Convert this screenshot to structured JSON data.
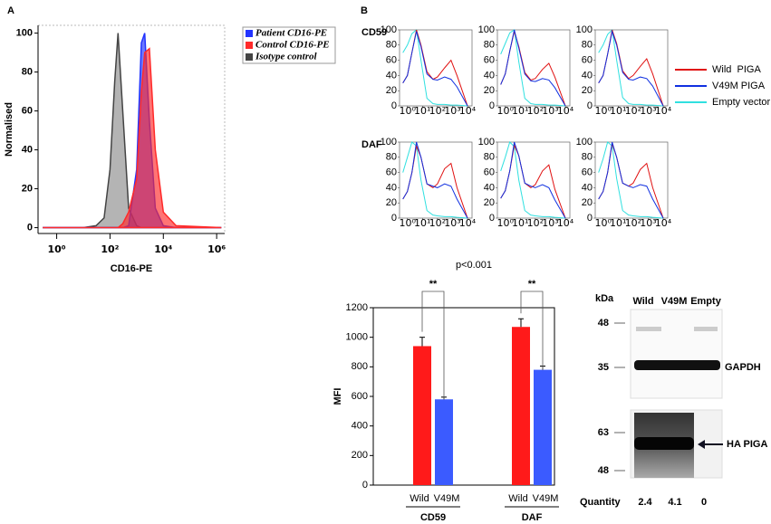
{
  "chart_data": [
    {
      "type": "area",
      "panel": "A",
      "ylabel": "Normalised",
      "xlabel": "CD16-PE",
      "log_x": true,
      "legend": "right",
      "xlim": [
        0.2,
        2000000
      ],
      "xticks": [
        {
          "value": 1,
          "label": "10⁰"
        },
        {
          "value": 100,
          "label": "10²"
        },
        {
          "value": 10000,
          "label": "10⁴"
        },
        {
          "value": 1000000,
          "label": "10⁶"
        }
      ],
      "ylim": [
        -3,
        104
      ],
      "yticks": [
        0,
        20,
        40,
        60,
        80,
        100
      ],
      "x": [
        0.3,
        10,
        30,
        60,
        100,
        150,
        200,
        300,
        500,
        1000,
        1500,
        2000,
        3000,
        5000,
        10000,
        30000,
        1500000
      ],
      "series": [
        {
          "name": "Patient CD16-PE",
          "color": "#2233ff",
          "values": [
            0,
            0,
            0,
            0,
            0,
            0,
            0,
            0,
            1,
            30,
            95,
            100,
            55,
            10,
            1,
            0,
            0
          ]
        },
        {
          "name": "Control CD16-PE",
          "color": "#ff2a2a",
          "values": [
            0,
            0,
            0,
            0,
            0,
            0,
            0,
            2,
            8,
            25,
            70,
            90,
            92,
            40,
            8,
            1,
            0
          ]
        },
        {
          "name": "Isotype control",
          "color": "#444444",
          "values": [
            0,
            0,
            1,
            5,
            30,
            75,
            100,
            60,
            10,
            1,
            0,
            0,
            0,
            0,
            0,
            0,
            0
          ]
        }
      ]
    },
    {
      "type": "line",
      "panel": "B",
      "row_labels": [
        "CD59",
        "DAF"
      ],
      "log_x": true,
      "xlim": [
        0.3,
        20000
      ],
      "xticks": [
        {
          "value": 1,
          "label": "10⁰"
        },
        {
          "value": 10,
          "label": "10¹"
        },
        {
          "value": 100,
          "label": "10²"
        },
        {
          "value": 1000,
          "label": "10³"
        },
        {
          "value": 10000,
          "label": "10⁴"
        }
      ],
      "ylim": [
        0,
        100
      ],
      "yticks": [
        0,
        20,
        40,
        60,
        80,
        100
      ],
      "x": [
        0.5,
        1,
        2,
        4,
        8,
        20,
        50,
        100,
        300,
        800,
        2000,
        10000
      ],
      "series": [
        {
          "name": "Wild  PIGA",
          "color": "#e01010",
          "values": [
            [
              30,
              40,
              70,
              100,
              80,
              45,
              35,
              38,
              50,
              60,
              40,
              0
            ],
            [
              28,
              42,
              72,
              98,
              78,
              44,
              34,
              36,
              48,
              56,
              38,
              0
            ],
            [
              30,
              40,
              68,
              100,
              82,
              46,
              36,
              40,
              52,
              62,
              42,
              0
            ],
            [
              25,
              35,
              60,
              95,
              80,
              45,
              40,
              45,
              65,
              72,
              40,
              0
            ],
            [
              26,
              36,
              62,
              96,
              82,
              46,
              40,
              44,
              62,
              70,
              38,
              0
            ],
            [
              25,
              35,
              60,
              98,
              80,
              46,
              42,
              46,
              64,
              72,
              40,
              0
            ]
          ]
        },
        {
          "name": "V49M PIGA",
          "color": "#1030e0",
          "values": [
            [
              30,
              40,
              70,
              98,
              78,
              42,
              35,
              34,
              38,
              35,
              25,
              0
            ],
            [
              28,
              42,
              72,
              100,
              76,
              42,
              33,
              32,
              36,
              34,
              24,
              0
            ],
            [
              30,
              40,
              68,
              98,
              80,
              44,
              35,
              34,
              38,
              36,
              26,
              0
            ],
            [
              25,
              35,
              60,
              100,
              80,
              45,
              42,
              40,
              45,
              42,
              25,
              0
            ],
            [
              26,
              36,
              62,
              100,
              82,
              46,
              42,
              40,
              44,
              40,
              24,
              0
            ],
            [
              25,
              35,
              60,
              100,
              80,
              46,
              42,
              40,
              44,
              42,
              25,
              0
            ]
          ]
        },
        {
          "name": "Empty vector",
          "color": "#30e0e0",
          "values": [
            [
              70,
              80,
              95,
              100,
              60,
              10,
              3,
              2,
              2,
              1,
              1,
              0
            ],
            [
              68,
              82,
              96,
              100,
              58,
              10,
              3,
              2,
              2,
              1,
              1,
              0
            ],
            [
              70,
              80,
              94,
              100,
              60,
              11,
              3,
              2,
              2,
              1,
              1,
              0
            ],
            [
              60,
              80,
              100,
              95,
              50,
              10,
              4,
              3,
              2,
              2,
              1,
              0
            ],
            [
              62,
              80,
              100,
              94,
              50,
              10,
              4,
              3,
              2,
              2,
              1,
              0
            ],
            [
              60,
              78,
              100,
              95,
              52,
              10,
              4,
              3,
              2,
              2,
              1,
              0
            ]
          ]
        }
      ]
    },
    {
      "type": "bar",
      "ylabel": "MFI",
      "annotation": "p<0.001",
      "significance": [
        "**",
        "**"
      ],
      "categories": [
        "CD59",
        "DAF"
      ],
      "ylim": [
        0,
        1200
      ],
      "yticks": [
        0,
        200,
        400,
        600,
        800,
        1000,
        1200
      ],
      "series": [
        {
          "name": "Wild",
          "color": "#ff1a1a",
          "values": [
            940,
            1070
          ],
          "errors": [
            60,
            55
          ]
        },
        {
          "name": "V49M",
          "color": "#3b5bff",
          "values": [
            580,
            780
          ],
          "errors": [
            15,
            25
          ]
        }
      ]
    }
  ],
  "blot": {
    "unit": "kDa",
    "lanes": [
      "Wild",
      "V49M",
      "Empty"
    ],
    "markers_top": [
      48,
      35
    ],
    "markers_bottom": [
      63,
      48
    ],
    "bands": [
      "GAPDH",
      "HA PIGA"
    ],
    "quantity_label": "Quantity",
    "quantity": [
      2.4,
      4.1,
      0
    ]
  }
}
